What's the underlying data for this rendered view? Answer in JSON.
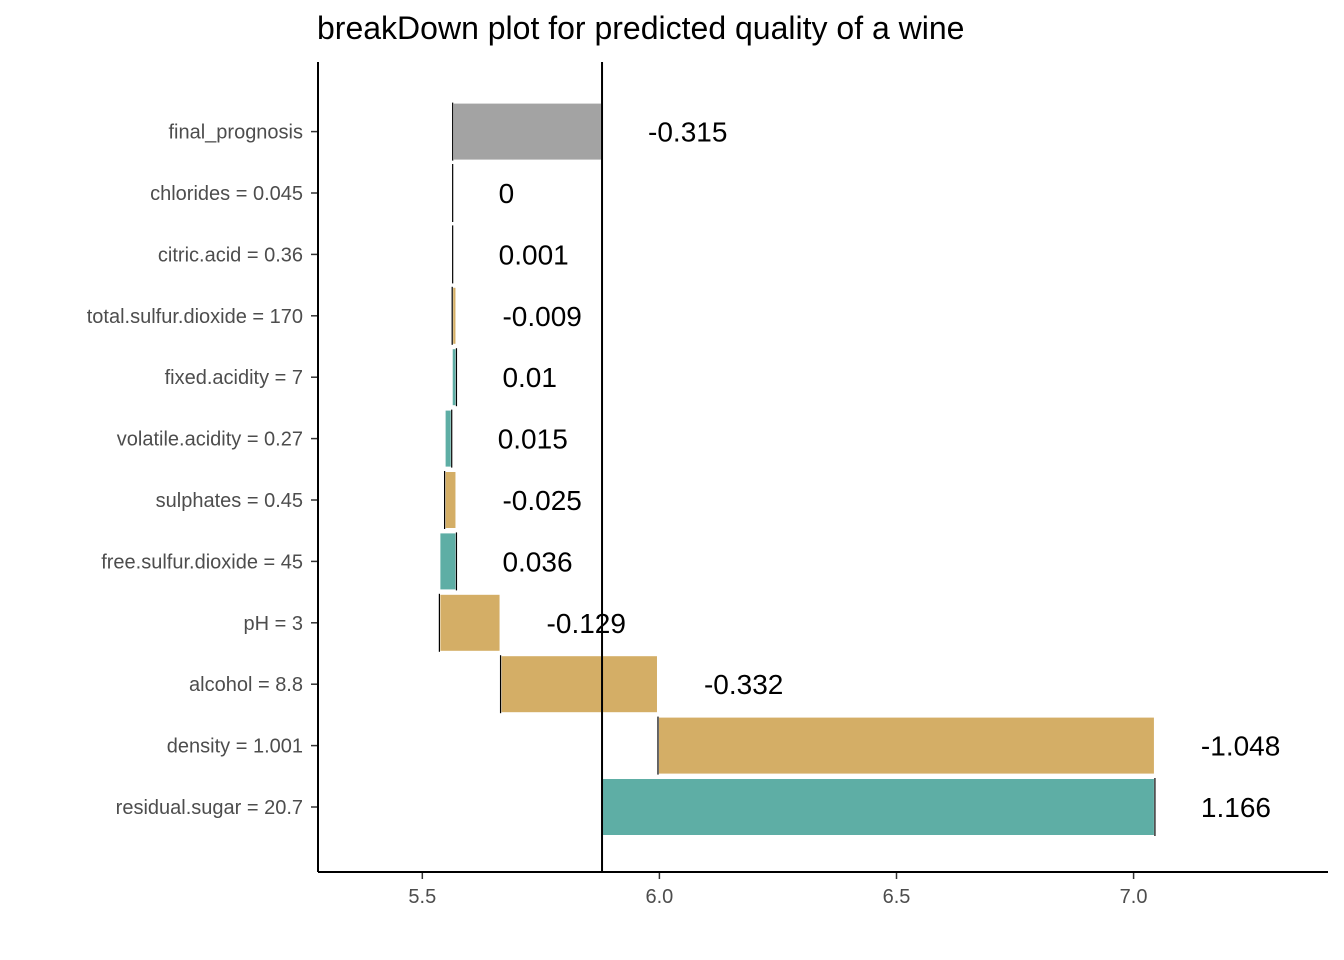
{
  "chart_data": {
    "type": "bar",
    "subtype": "waterfall",
    "title": "breakDown plot for predicted quality of a wine",
    "xlabel": "",
    "ylabel": "",
    "xlim": [
      5.28,
      7.41
    ],
    "intercept": 5.879,
    "xticks": [
      "5.5",
      "6.0",
      "6.5",
      "7.0"
    ],
    "xtick_values": [
      5.5,
      6.0,
      6.5,
      7.0
    ],
    "grid": false,
    "legend": "none",
    "colors": {
      "positive": "#5eaea5",
      "negative": "#d4ae66",
      "final": "#a3a3a3",
      "reference_line": "#000000"
    },
    "bars": [
      {
        "label": "residual.sugar = 20.7",
        "contribution": 1.166,
        "display": "1.166",
        "kind": "positive"
      },
      {
        "label": "density = 1.001",
        "contribution": -1.048,
        "display": "-1.048",
        "kind": "negative"
      },
      {
        "label": "alcohol = 8.8",
        "contribution": -0.332,
        "display": "-0.332",
        "kind": "negative"
      },
      {
        "label": "pH = 3",
        "contribution": -0.129,
        "display": "-0.129",
        "kind": "negative"
      },
      {
        "label": "free.sulfur.dioxide = 45",
        "contribution": 0.036,
        "display": "0.036",
        "kind": "positive"
      },
      {
        "label": "sulphates = 0.45",
        "contribution": -0.025,
        "display": "-0.025",
        "kind": "negative"
      },
      {
        "label": "volatile.acidity = 0.27",
        "contribution": 0.015,
        "display": "0.015",
        "kind": "positive"
      },
      {
        "label": "fixed.acidity = 7",
        "contribution": 0.01,
        "display": "0.01",
        "kind": "positive"
      },
      {
        "label": "total.sulfur.dioxide = 170",
        "contribution": -0.009,
        "display": "-0.009",
        "kind": "negative"
      },
      {
        "label": "citric.acid = 0.36",
        "contribution": 0.001,
        "display": "0.001",
        "kind": "positive"
      },
      {
        "label": "chlorides = 0.045",
        "contribution": 0.0,
        "display": "0",
        "kind": "positive"
      },
      {
        "label": "final_prognosis",
        "contribution": -0.315,
        "display": "-0.315",
        "kind": "final"
      }
    ]
  }
}
